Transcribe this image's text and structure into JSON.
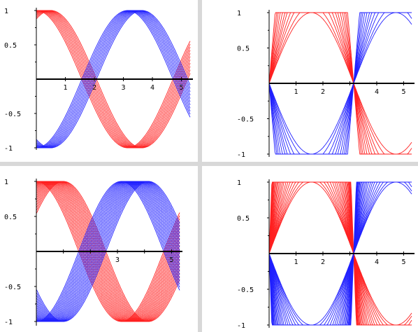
{
  "colors": {
    "red": "#ff2020",
    "blue": "#2020ff",
    "axis": "#000000",
    "background": "#ffffff",
    "divider": "#d8d8d8"
  },
  "chart_data": [
    {
      "type": "line",
      "title": "",
      "xlabel": "",
      "ylabel": "",
      "xlim": [
        0,
        5.3
      ],
      "ylim": [
        -1,
        1
      ],
      "x_ticks": [
        "1",
        "2",
        "3",
        "4",
        "5"
      ],
      "y_ticks": [
        "1",
        "0.5",
        "-0.5",
        "-1"
      ],
      "families": [
        {
          "color": "red",
          "function": "cos",
          "phase_shifts": [
            0,
            0.05,
            0.1,
            0.15,
            0.2,
            0.25,
            0.3,
            0.35,
            0.4,
            0.45,
            0.5
          ],
          "clip": 1.0
        },
        {
          "color": "blue",
          "function": "-cos",
          "phase_shifts": [
            0,
            0.05,
            0.1,
            0.15,
            0.2,
            0.25,
            0.3,
            0.35,
            0.4,
            0.45,
            0.5
          ],
          "clip": 1.0
        }
      ]
    },
    {
      "type": "line",
      "title": "",
      "xlabel": "",
      "ylabel": "",
      "xlim": [
        0,
        5.3
      ],
      "ylim": [
        -1,
        1
      ],
      "x_ticks": [
        "1",
        "2",
        "4",
        "5"
      ],
      "y_ticks": [
        "1",
        "0.5",
        "-0.5",
        "-1"
      ],
      "families": [
        {
          "color": "red",
          "function": "sin",
          "gains": [
            1,
            1.1,
            1.25,
            1.4,
            1.6,
            1.8,
            2.1,
            2.5,
            3.0,
            3.6,
            4.5
          ],
          "clip": 1.0
        },
        {
          "color": "blue",
          "function": "-sin",
          "gains": [
            1,
            1.1,
            1.25,
            1.4,
            1.6,
            1.8,
            2.1,
            2.5,
            3.0,
            3.6,
            4.5
          ],
          "clip": 1.0
        }
      ]
    },
    {
      "type": "line",
      "title": "",
      "xlabel": "",
      "ylabel": "",
      "xlim": [
        0,
        5.3
      ],
      "ylim": [
        -1,
        1
      ],
      "x_ticks": [
        "3",
        "5"
      ],
      "y_ticks": [
        "1",
        "0.5",
        "-0.5",
        "-1"
      ],
      "families": [
        {
          "color": "red",
          "function": "cos",
          "phase_shifts": [
            0,
            0.05,
            0.1,
            0.15,
            0.2,
            0.25,
            0.3,
            0.35,
            0.4,
            0.45,
            0.5,
            0.55,
            0.6,
            0.65,
            0.7,
            0.75,
            0.8,
            0.85,
            0.9,
            0.95,
            1.0
          ],
          "clip": 1.0
        },
        {
          "color": "blue",
          "function": "-cos",
          "phase_shifts": [
            0,
            0.05,
            0.1,
            0.15,
            0.2,
            0.25,
            0.3,
            0.35,
            0.4,
            0.45,
            0.5,
            0.55,
            0.6,
            0.65,
            0.7,
            0.75,
            0.8,
            0.85,
            0.9,
            0.95,
            1.0
          ],
          "clip": 1.0
        }
      ]
    },
    {
      "type": "line",
      "title": "",
      "xlabel": "",
      "ylabel": "",
      "xlim": [
        0,
        5.3
      ],
      "ylim": [
        -1,
        1
      ],
      "x_ticks": [
        "1",
        "2",
        "4",
        "5"
      ],
      "y_ticks": [
        "1",
        "0.5",
        "-0.5",
        "-1"
      ],
      "families": [
        {
          "color": "red",
          "function": "sin",
          "gains": [
            1,
            1.05,
            1.12,
            1.2,
            1.3,
            1.42,
            1.55,
            1.7,
            1.9,
            2.1,
            2.35,
            2.65,
            3.0,
            3.4,
            3.9,
            4.5,
            5.2,
            6.0,
            7.0,
            8.2,
            10.0
          ],
          "clip": 1.0
        },
        {
          "color": "blue",
          "function": "-sin",
          "gains": [
            1,
            1.05,
            1.12,
            1.2,
            1.3,
            1.42,
            1.55,
            1.7,
            1.9,
            2.1,
            2.35,
            2.65,
            3.0,
            3.4,
            3.9,
            4.5,
            5.2,
            6.0,
            7.0,
            8.2,
            10.0
          ],
          "clip": 1.0
        }
      ]
    }
  ]
}
